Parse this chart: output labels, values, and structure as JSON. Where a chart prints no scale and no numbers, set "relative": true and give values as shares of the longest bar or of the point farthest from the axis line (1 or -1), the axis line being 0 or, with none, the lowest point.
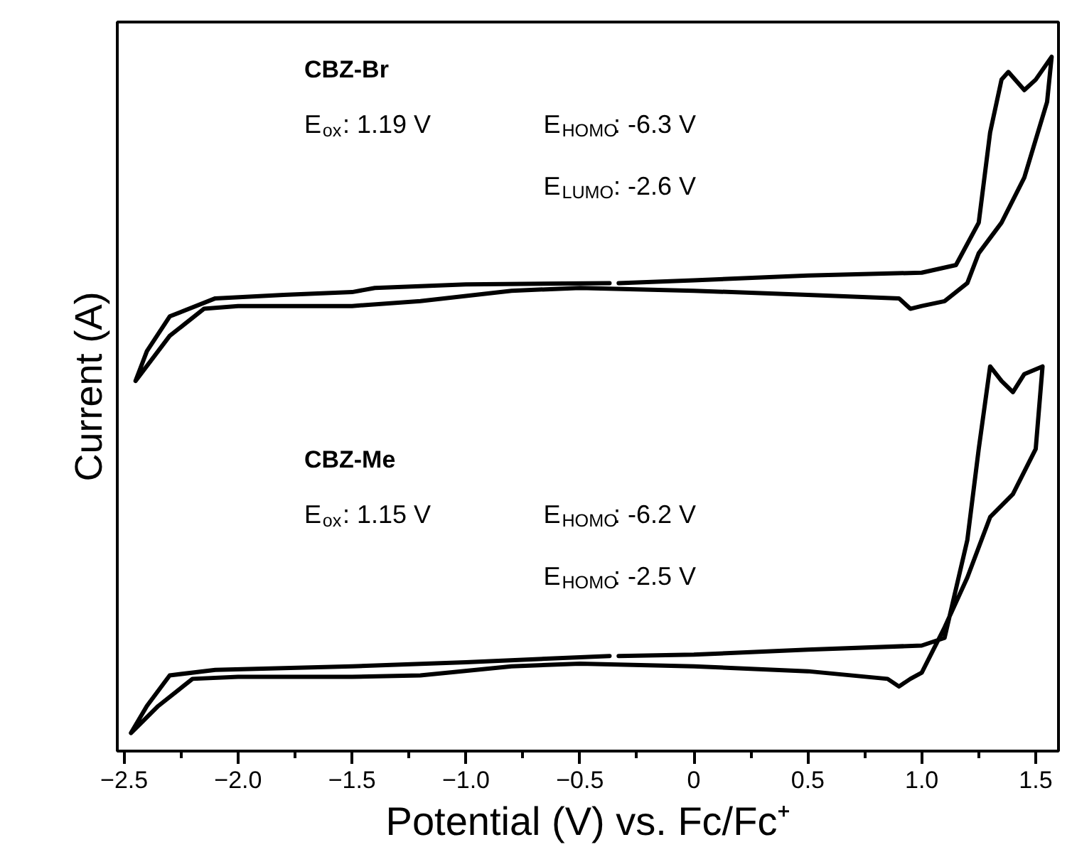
{
  "chart_data": {
    "type": "line",
    "relative": true,
    "xlabel": "Potential (V) vs. Fc/Fc⁺",
    "ylabel": "Current (A)",
    "xlim": [
      -2.53,
      1.6
    ],
    "xticks": [
      {
        "value": -2.5,
        "label": "−2.5"
      },
      {
        "value": -2.0,
        "label": "−2.0"
      },
      {
        "value": -1.5,
        "label": "−1.5"
      },
      {
        "value": -1.0,
        "label": "−1.0"
      },
      {
        "value": -0.5,
        "label": "−0.5"
      },
      0,
      0.5,
      {
        "value": 1.0,
        "label": "1.0"
      },
      1.5
    ],
    "grid": false,
    "line_style": "solid",
    "series": [
      {
        "color": "#000000",
        "x": [
          -0.33,
          0,
          0.5,
          1.0,
          1.15,
          1.25,
          1.3,
          1.35,
          1.38,
          1.45,
          1.5,
          1.57,
          1.55,
          1.45,
          1.35,
          1.25,
          1.2,
          1.1,
          1.0,
          0.95,
          0.9,
          0.5,
          0,
          -0.5,
          -0.8,
          -1.2,
          -1.5,
          -2.0,
          -2.15,
          -2.3,
          -2.45,
          -2.4,
          -2.3,
          -2.1,
          -1.8,
          -1.5,
          -1.4,
          -1.0,
          -0.37
        ],
        "values": [
          0.674,
          0.678,
          0.685,
          0.689,
          0.7,
          0.761,
          0.891,
          0.967,
          0.978,
          0.952,
          0.967,
          1.0,
          0.935,
          0.826,
          0.761,
          0.717,
          0.674,
          0.648,
          0.641,
          0.637,
          0.652,
          0.657,
          0.663,
          0.667,
          0.663,
          0.648,
          0.641,
          0.641,
          0.637,
          0.598,
          0.533,
          0.576,
          0.626,
          0.652,
          0.657,
          0.661,
          0.667,
          0.672,
          0.674
        ]
      },
      {
        "color": "#000000",
        "x": [
          -0.33,
          0,
          0.5,
          1.0,
          1.1,
          1.2,
          1.25,
          1.3,
          1.35,
          1.4,
          1.45,
          1.53,
          1.5,
          1.4,
          1.3,
          1.2,
          1.1,
          1.0,
          0.95,
          0.9,
          0.85,
          0.5,
          0,
          -0.5,
          -0.8,
          -1.2,
          -1.5,
          -2.0,
          -2.2,
          -2.35,
          -2.47,
          -2.4,
          -2.3,
          -2.1,
          -1.5,
          -1.0,
          -0.37
        ],
        "values": [
          0.137,
          0.139,
          0.146,
          0.152,
          0.163,
          0.304,
          0.435,
          0.554,
          0.533,
          0.517,
          0.543,
          0.554,
          0.435,
          0.37,
          0.337,
          0.25,
          0.178,
          0.113,
          0.104,
          0.093,
          0.104,
          0.115,
          0.122,
          0.126,
          0.122,
          0.109,
          0.107,
          0.107,
          0.104,
          0.065,
          0.026,
          0.065,
          0.109,
          0.117,
          0.122,
          0.128,
          0.137
        ]
      }
    ],
    "annotations": [
      "CBZ-Br",
      "E$_{ox}$: 1.19 V",
      "E$_{HOMO}$: -6.3 V",
      "E$_{LUMO}$: -2.6 V",
      "CBZ-Me",
      "E$_{ox}$: 1.15 V",
      "E$_{HOMO}$: -6.2 V",
      "E$_{HOMO}$: -2.5 V"
    ]
  }
}
